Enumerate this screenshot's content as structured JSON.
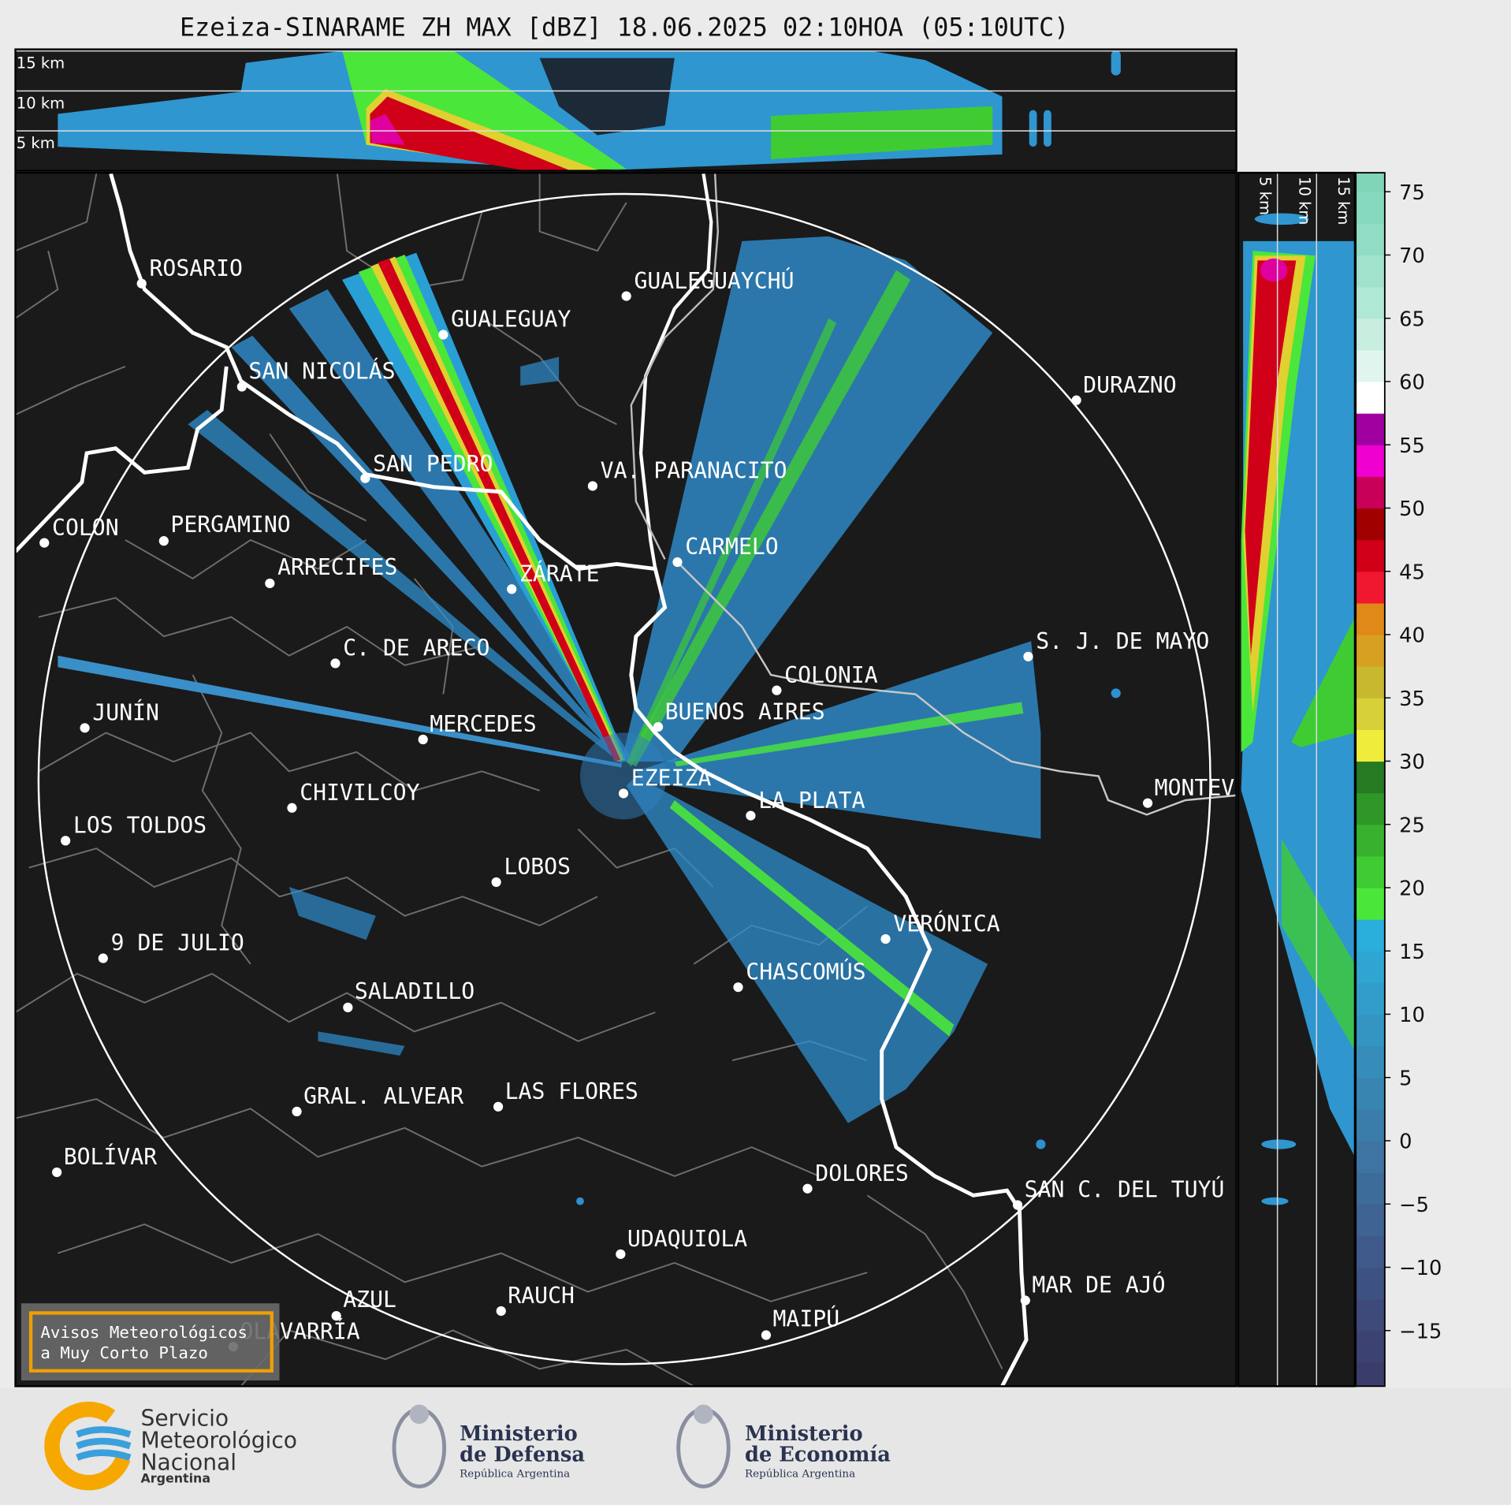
{
  "title": "Ezeiza-SINARAME ZH MAX [dBZ] 18.06.2025 02:10HOA (05:10UTC)",
  "top_section": {
    "ylim": [
      0,
      15.2
    ],
    "yticks": [
      {
        "value": 5,
        "label": "5 km"
      },
      {
        "value": 10,
        "label": "10 km"
      },
      {
        "value": 15,
        "label": "15 km"
      }
    ]
  },
  "side_section": {
    "xlim": [
      0,
      14.9
    ],
    "xticks": [
      {
        "value": 5,
        "label": "5 km"
      },
      {
        "value": 10,
        "label": "10 km"
      },
      {
        "value": 15,
        "label": "15 km"
      }
    ]
  },
  "colorbar": {
    "ylim": [
      -19.4,
      76.5
    ],
    "yticks": [
      {
        "value": -15,
        "label": "−15"
      },
      {
        "value": -10,
        "label": "−10"
      },
      {
        "value": -5,
        "label": "−5"
      },
      0,
      5,
      10,
      15,
      20,
      25,
      30,
      35,
      40,
      45,
      50,
      55,
      60,
      65,
      70,
      75
    ],
    "bins": [
      -20,
      -17.5,
      -15,
      -12.5,
      -10,
      -7.5,
      -5,
      -2.5,
      0,
      2.5,
      5,
      7.5,
      10,
      12.5,
      15,
      17.5,
      20,
      22.5,
      25,
      27.5,
      30,
      32.5,
      35,
      37.5,
      40,
      42.5,
      45,
      47.5,
      50,
      52.5,
      55,
      57.5,
      60,
      62.5,
      65,
      67.5,
      70,
      72.5,
      75,
      77.5
    ],
    "colors": [
      "#3a3d6a",
      "#3c4372",
      "#3d4a7a",
      "#3e5282",
      "#3f5a8a",
      "#3f6392",
      "#3e6c9a",
      "#3d74a2",
      "#3b7daa",
      "#3985b2",
      "#378dba",
      "#3595c2",
      "#329dca",
      "#2fa5d2",
      "#2aaedb",
      "#4be63a",
      "#3fcc33",
      "#38b22e",
      "#2f9628",
      "#267a22",
      "#f0ec3c",
      "#d8d038",
      "#c8b830",
      "#d8a020",
      "#e08818",
      "#f01830",
      "#d00018",
      "#a00000",
      "#c8005a",
      "#f000d0",
      "#a000a0",
      "#ffffff",
      "#e0f5ee",
      "#c8eee0",
      "#b0e8d6",
      "#a0e2cc",
      "#90dcc4",
      "#86d8be",
      "#80d4b8"
    ]
  },
  "cities": [
    "ROSARIO",
    "GUALEGUAYCHÚ",
    "GUALEGUAY",
    "SAN NICOLÁS",
    "DURAZNO",
    "SAN PEDRO",
    "VA. PARANACITO",
    "COLON",
    "PERGAMINO",
    "CARMELO",
    "ARRECIFES",
    "ZÁRATE",
    "S. J. DE MAYO",
    "C. DE ARECO",
    "COLONIA",
    "BUENOS AIRES",
    "JUNÍN",
    "MERCEDES",
    "EZEIZA",
    "MONTEV",
    "CHIVILCOY",
    "LA PLATA",
    "LOS TOLDOS",
    "LOBOS",
    "VERÓNICA",
    "9 DE JULIO",
    "CHASCOMÚS",
    "SALADILLO",
    "GRAL. ALVEAR",
    "LAS FLORES",
    "BOLÍVAR",
    "DOLORES",
    "SAN C. DEL TUYÚ",
    "UDAQUIOLA",
    "MAR DE AJÓ",
    "RAUCH",
    "AZUL",
    "MAIPÚ",
    "OLAVARRÍA"
  ],
  "warning": {
    "lines": [
      "Avisos Meteorológicos",
      "a Muy Corto Plazo"
    ]
  },
  "logos": {
    "smn": [
      "Servicio",
      "Meteorológico",
      "Nacional",
      "Argentina"
    ],
    "defensa": [
      "Ministerio",
      "de Defensa",
      "República Argentina"
    ],
    "economia": [
      "Ministerio",
      "de Economía",
      "República Argentina"
    ]
  }
}
